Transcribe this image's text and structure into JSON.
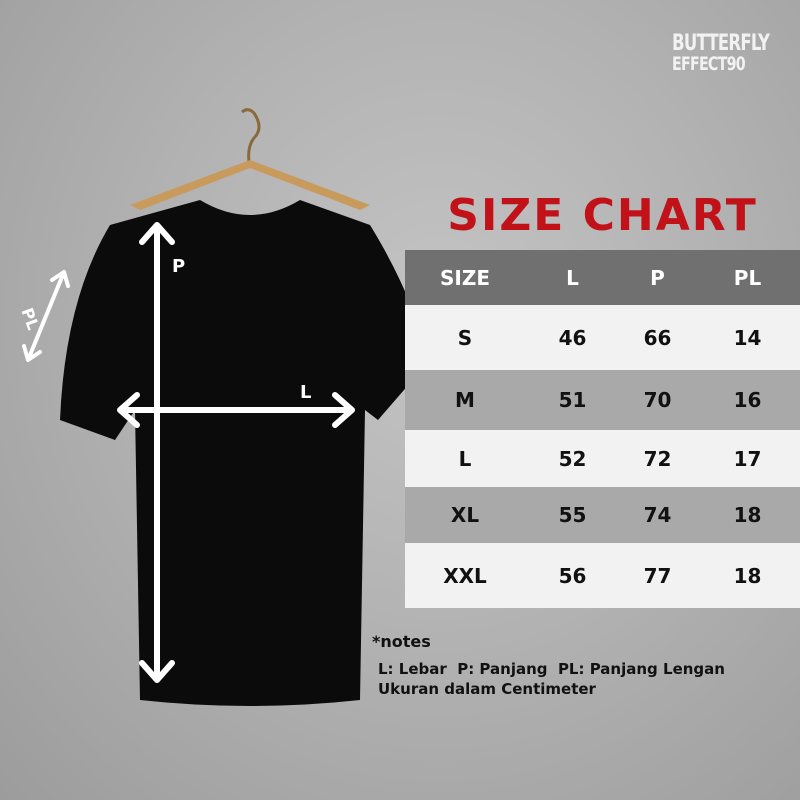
{
  "logo": {
    "line1": "BUTTERFLY",
    "line2": "EFFECT90"
  },
  "title": "SIZE CHART",
  "table": {
    "headers": [
      "SIZE",
      "L",
      "P",
      "PL"
    ],
    "rows": [
      [
        "S",
        "46",
        "66",
        "14"
      ],
      [
        "M",
        "51",
        "70",
        "16"
      ],
      [
        "L",
        "52",
        "72",
        "17"
      ],
      [
        "XL",
        "55",
        "74",
        "18"
      ],
      [
        "XXL",
        "56",
        "77",
        "18"
      ]
    ]
  },
  "shirt_labels": {
    "p": "P",
    "l": "L",
    "pl": "PL"
  },
  "notes": {
    "heading": "*notes",
    "line1": "L: Lebar  P: Panjang  PL: Panjang Lengan",
    "line2": "Ukuran dalam Centimeter"
  },
  "colors": {
    "title": "#c1121a",
    "header_band": "#707070",
    "shirt": "#0b0b0b"
  }
}
